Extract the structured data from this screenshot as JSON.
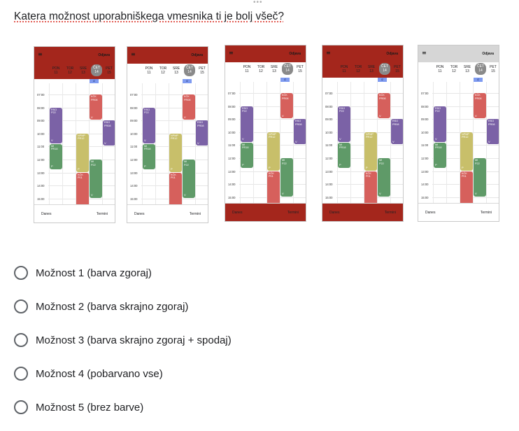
{
  "drag_handle": "•••",
  "question": {
    "title": "Katera možnost uporabniškega vmesnika ti je bolj všeč?"
  },
  "colors": {
    "header_red": "#a4261c",
    "header_gray": "#d6d6d6",
    "event_purple": "#7b62a6",
    "event_red": "#d6605c",
    "event_olive": "#c8bf6a",
    "event_green": "#5f9a68",
    "chip_blue": "#7f9bf0"
  },
  "mockup": {
    "menu_icon": "hamburger-icon",
    "menu_glyph": "≡",
    "logout": "Odjava",
    "days": [
      {
        "name": "PON",
        "num": "11"
      },
      {
        "name": "TOR",
        "num": "12"
      },
      {
        "name": "SRE",
        "num": "13"
      },
      {
        "name": "ČET",
        "num": "14"
      },
      {
        "name": "PET",
        "num": "15"
      }
    ],
    "iz_label": "IZ",
    "times": [
      "07:00",
      "08:00",
      "09:00",
      "10:00",
      "11:00",
      "12:00",
      "13:00",
      "14:00",
      "15:00"
    ],
    "events": {
      "rso_p22": {
        "title": "RSO",
        "sub": "P22",
        "v": "V"
      },
      "kck_pr08": {
        "title": "KČK",
        "sub": "PR08",
        "v": "V"
      },
      "rso_pr08": {
        "title": "RSO",
        "sub": "PR08",
        "v": "V"
      },
      "npmp_pr12": {
        "title": "NPMP",
        "sub": "PR12",
        "v": "P"
      },
      "mi_pr18": {
        "title": "MI",
        "sub": "PR18",
        "v": "P"
      },
      "mi_p22": {
        "title": "MI",
        "sub": "P22",
        "v": "V"
      },
      "kck_p01": {
        "title": "KČK",
        "sub": "P01",
        "v": "P"
      }
    },
    "footer_left": "Danes",
    "footer_right": "Termini"
  },
  "options": [
    {
      "label": "Možnost 1 (barva zgoraj)"
    },
    {
      "label": "Možnost 2 (barva skrajno zgoraj)"
    },
    {
      "label": "Možnost 3 (barva skrajno zgoraj + spodaj)"
    },
    {
      "label": "Možnost 4 (pobarvano vse)"
    },
    {
      "label": "Možnost 5 (brez barve)"
    }
  ]
}
